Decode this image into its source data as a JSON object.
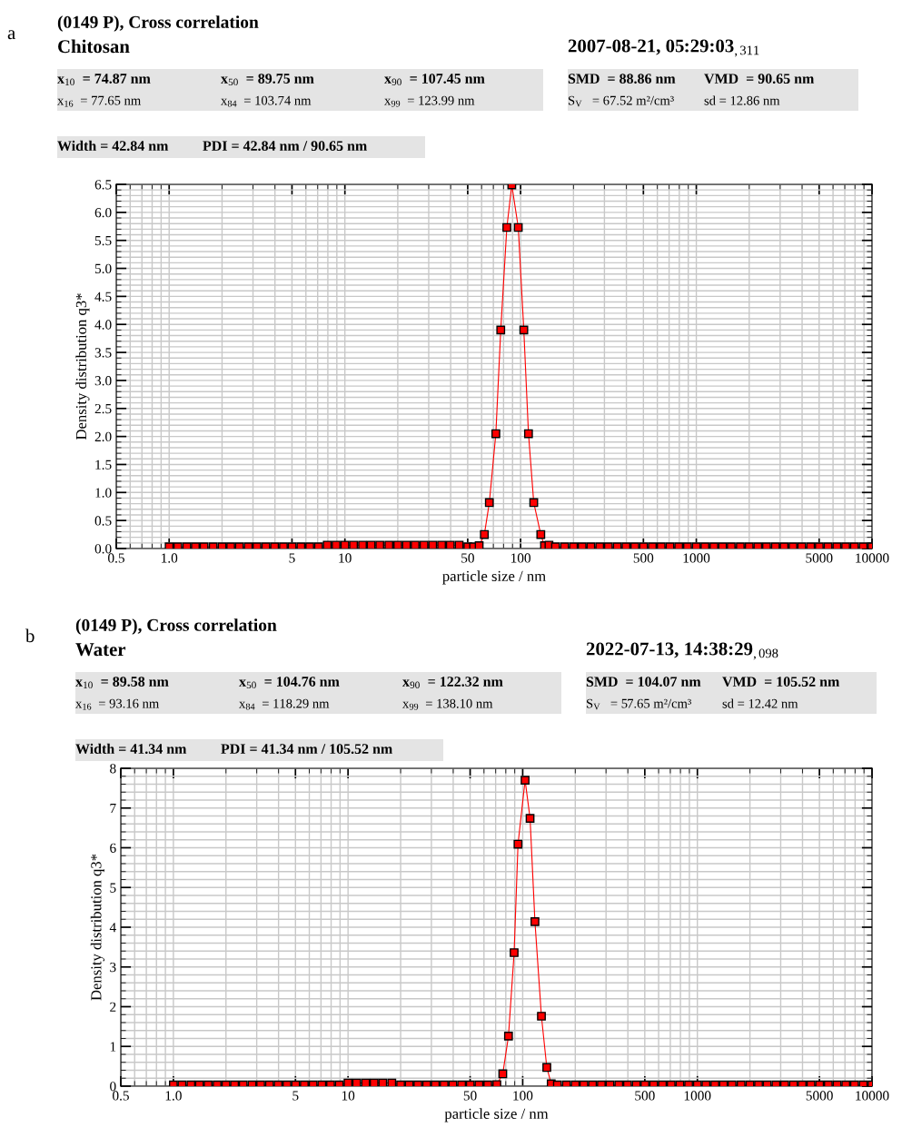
{
  "chart_data": [
    {
      "type": "line",
      "title": "(0149 P), Cross correlation",
      "subtitle": "Chitosan",
      "xlabel": "particle size / nm",
      "ylabel": "Density distribution q3*",
      "annotations": [
        "a",
        "2007-08-21, 05:29:03$_{,311}$",
        "x$_{10}$  = 74.87 nm",
        "x$_{50}$  = 89.75 nm",
        "x$_{90}$  = 107.45 nm",
        "SMD  = 88.86 nm",
        "VMD  = 90.65 nm",
        "x$_{16}$  = 77.65 nm",
        "x$_{84}$  = 103.74 nm",
        "x$_{99}$  = 123.99 nm",
        "S$_{V}$   = 67.52 m²/cm³",
        "sd = 12.86 nm",
        "Width = 42.84 nm",
        "PDI = 42.84 nm / 90.65 nm"
      ],
      "log": "x",
      "xlim": [
        0.5,
        10000
      ],
      "xticks": [
        0.5,
        {
          "value": 1,
          "label": "1.0"
        },
        5,
        10,
        50,
        100,
        500,
        1000,
        5000,
        10000
      ],
      "ylim": [
        0,
        6.5
      ],
      "yticks": [
        {
          "value": 0,
          "label": "0.0"
        },
        0.5,
        {
          "value": 1,
          "label": "1.0"
        },
        1.5,
        {
          "value": 2,
          "label": "2.0"
        },
        2.5,
        {
          "value": 3,
          "label": "3.0"
        },
        3.5,
        {
          "value": 4,
          "label": "4.0"
        },
        4.5,
        {
          "value": 5,
          "label": "5.0"
        },
        5.5,
        {
          "value": 6,
          "label": "6.0"
        },
        6.5
      ],
      "grid": true,
      "marker": "square",
      "line_style": "solid",
      "series": [
        {
          "color": "#ff0000",
          "x": [
            1.0,
            1.12,
            1.26,
            1.41,
            1.58,
            1.78,
            2.0,
            2.24,
            2.51,
            2.82,
            3.16,
            3.55,
            3.98,
            4.47,
            5.01,
            5.62,
            6.31,
            7.08,
            7.94,
            8.91,
            10.0,
            11.2,
            12.6,
            14.1,
            15.8,
            17.8,
            20.0,
            22.4,
            25.1,
            28.2,
            31.6,
            35.5,
            39.8,
            44.7,
            50.1,
            54.0,
            58.1,
            62.2,
            66.4,
            72.3,
            77.1,
            83.5,
            89.1,
            97,
            104.3,
            110.9,
            118.8,
            130.3,
            136.8,
            145,
            158,
            178,
            200,
            224,
            251,
            282,
            316,
            355,
            398,
            447,
            501,
            562,
            631,
            708,
            794,
            891,
            1000,
            1120,
            1260,
            1410,
            1580,
            1780,
            2000,
            2240,
            2510,
            2820,
            3160,
            3550,
            3980,
            4470,
            5010,
            5620,
            6310,
            7080,
            7940,
            8910,
            10000
          ],
          "values": [
            0.03,
            0.03,
            0.03,
            0.03,
            0.03,
            0.03,
            0.03,
            0.03,
            0.03,
            0.03,
            0.03,
            0.03,
            0.03,
            0.03,
            0.03,
            0.03,
            0.03,
            0.03,
            0.06,
            0.06,
            0.06,
            0.06,
            0.06,
            0.06,
            0.06,
            0.06,
            0.06,
            0.06,
            0.06,
            0.06,
            0.06,
            0.06,
            0.06,
            0.06,
            0.03,
            0.03,
            0.05,
            0.25,
            0.82,
            2.05,
            3.9,
            5.73,
            6.49,
            5.73,
            3.9,
            2.05,
            0.82,
            0.25,
            0.05,
            0.06,
            0.03,
            0.03,
            0.03,
            0.03,
            0.03,
            0.03,
            0.03,
            0.03,
            0.03,
            0.03,
            0.03,
            0.03,
            0.03,
            0.03,
            0.03,
            0.03,
            0.03,
            0.03,
            0.03,
            0.03,
            0.03,
            0.03,
            0.03,
            0.03,
            0.03,
            0.03,
            0.03,
            0.03,
            0.03,
            0.03,
            0.03,
            0.03,
            0.03,
            0.03,
            0.03,
            0.03,
            0.03
          ]
        }
      ]
    },
    {
      "type": "line",
      "title": "(0149 P), Cross correlation",
      "subtitle": "Water",
      "xlabel": "particle size / nm",
      "ylabel": "Density distribution q3*",
      "annotations": [
        "b",
        "2022-07-13, 14:38:29$_{,098}$",
        "x$_{10}$  = 89.58 nm",
        "x$_{50}$  = 104.76 nm",
        "x$_{90}$  = 122.32 nm",
        "SMD  = 104.07 nm",
        "VMD  = 105.52 nm",
        "x$_{16}$  = 93.16 nm",
        "x$_{84}$  = 118.29 nm",
        "x$_{99}$  = 138.10 nm",
        "S$_{V}$   = 57.65 m²/cm³",
        "sd = 12.42 nm",
        "Width = 41.34 nm",
        "PDI = 41.34 nm / 105.52 nm"
      ],
      "log": "x",
      "xlim": [
        0.5,
        10000
      ],
      "xticks": [
        0.5,
        {
          "value": 1,
          "label": "1.0"
        },
        5,
        10,
        50,
        100,
        500,
        1000,
        5000,
        10000
      ],
      "ylim": [
        0,
        8
      ],
      "yticks": [
        0,
        1,
        2,
        3,
        4,
        5,
        6,
        7,
        8
      ],
      "grid": true,
      "marker": "square",
      "line_style": "solid",
      "series": [
        {
          "color": "#ff0000",
          "x": [
            1.0,
            1.12,
            1.26,
            1.41,
            1.58,
            1.78,
            2.0,
            2.24,
            2.51,
            2.82,
            3.16,
            3.55,
            3.98,
            4.47,
            5.01,
            5.62,
            6.31,
            7.08,
            7.94,
            8.91,
            10.0,
            11.2,
            12.6,
            14.1,
            15.8,
            17.8,
            20.0,
            22.4,
            25.1,
            28.2,
            31.6,
            35.5,
            39.8,
            44.7,
            50.1,
            56.2,
            63.1,
            71.1,
            76.9,
            82.9,
            89.3,
            94,
            103.2,
            110.2,
            117.5,
            128,
            137.4,
            145.6,
            158,
            178,
            200,
            224,
            251,
            282,
            316,
            355,
            398,
            447,
            501,
            562,
            631,
            708,
            794,
            891,
            1000,
            1120,
            1260,
            1410,
            1580,
            1780,
            2000,
            2240,
            2510,
            2820,
            3160,
            3550,
            3980,
            4470,
            5010,
            5620,
            6310,
            7080,
            7940,
            8910,
            10000
          ],
          "values": [
            0.03,
            0.03,
            0.03,
            0.03,
            0.03,
            0.03,
            0.03,
            0.03,
            0.03,
            0.03,
            0.03,
            0.03,
            0.03,
            0.03,
            0.03,
            0.03,
            0.03,
            0.03,
            0.03,
            0.03,
            0.08,
            0.08,
            0.08,
            0.08,
            0.08,
            0.08,
            0.03,
            0.03,
            0.03,
            0.03,
            0.03,
            0.03,
            0.03,
            0.03,
            0.03,
            0.03,
            0.03,
            0.04,
            0.31,
            1.26,
            3.36,
            6.09,
            7.7,
            6.74,
            4.14,
            1.76,
            0.47,
            0.06,
            0.03,
            0.03,
            0.03,
            0.03,
            0.03,
            0.03,
            0.03,
            0.03,
            0.03,
            0.03,
            0.03,
            0.03,
            0.03,
            0.03,
            0.03,
            0.03,
            0.03,
            0.03,
            0.03,
            0.03,
            0.03,
            0.03,
            0.03,
            0.03,
            0.03,
            0.03,
            0.03,
            0.03,
            0.03,
            0.03,
            0.03,
            0.03,
            0.03,
            0.03,
            0.03,
            0.03,
            0.03
          ]
        }
      ]
    }
  ]
}
